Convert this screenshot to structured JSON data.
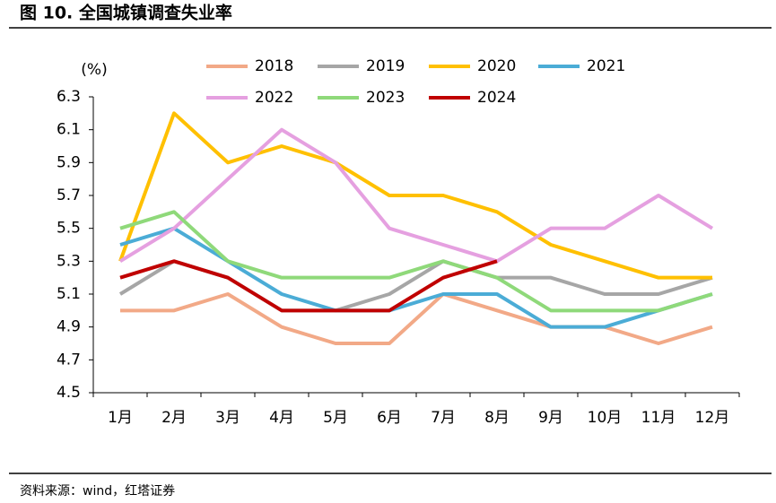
{
  "chart_data": {
    "type": "line",
    "title": "图 10. 全国城镇调查失业率",
    "y_unit": "(%)",
    "source": "资料来源：wind，红塔证券",
    "categories": [
      "1月",
      "2月",
      "3月",
      "4月",
      "5月",
      "6月",
      "7月",
      "8月",
      "9月",
      "10月",
      "11月",
      "12月"
    ],
    "series": [
      {
        "name": "2018",
        "color": "#f2a987",
        "values": [
          5.0,
          5.0,
          5.1,
          4.9,
          4.8,
          4.8,
          5.1,
          5.0,
          4.9,
          4.9,
          4.8,
          4.9
        ]
      },
      {
        "name": "2019",
        "color": "#a6a6a6",
        "values": [
          5.1,
          5.3,
          5.2,
          5.0,
          5.0,
          5.1,
          5.3,
          5.2,
          5.2,
          5.1,
          5.1,
          5.2
        ]
      },
      {
        "name": "2020",
        "color": "#ffc000",
        "values": [
          5.3,
          6.2,
          5.9,
          6.0,
          5.9,
          5.7,
          5.7,
          5.6,
          5.4,
          5.3,
          5.2,
          5.2
        ]
      },
      {
        "name": "2021",
        "color": "#4bacd6",
        "values": [
          5.4,
          5.5,
          5.3,
          5.1,
          5.0,
          5.0,
          5.1,
          5.1,
          4.9,
          4.9,
          5.0,
          5.1
        ]
      },
      {
        "name": "2022",
        "color": "#e5a0e0",
        "values": [
          5.3,
          5.5,
          5.8,
          6.1,
          5.9,
          5.5,
          5.4,
          5.3,
          5.5,
          5.5,
          5.7,
          5.5
        ]
      },
      {
        "name": "2023",
        "color": "#8fd97a",
        "values": [
          5.5,
          5.6,
          5.3,
          5.2,
          5.2,
          5.2,
          5.3,
          5.2,
          5.0,
          5.0,
          5.0,
          5.1
        ]
      },
      {
        "name": "2024",
        "color": "#c00000",
        "values": [
          5.2,
          5.3,
          5.2,
          5.0,
          5.0,
          5.0,
          5.2,
          5.3,
          null,
          null,
          null,
          null
        ]
      }
    ],
    "ylim": [
      4.5,
      6.3
    ],
    "yticks": [
      4.5,
      4.7,
      4.9,
      5.1,
      5.3,
      5.5,
      5.7,
      5.9,
      6.1,
      6.3
    ],
    "grid": false
  }
}
